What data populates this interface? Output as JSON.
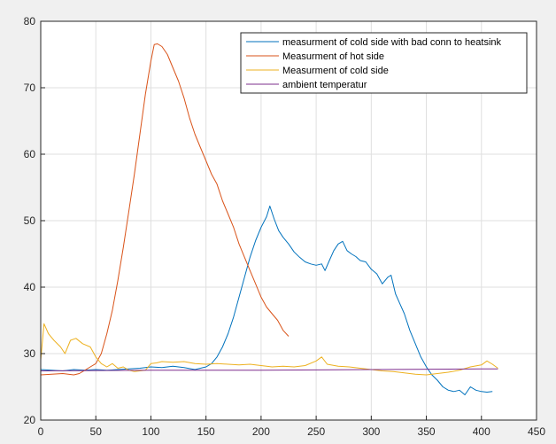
{
  "chart_data": {
    "type": "line",
    "title": "",
    "xlabel": "",
    "ylabel": "",
    "xlim": [
      0,
      450
    ],
    "ylim": [
      20,
      80
    ],
    "xticks": [
      0,
      50,
      100,
      150,
      200,
      250,
      300,
      350,
      400,
      450
    ],
    "yticks": [
      20,
      30,
      40,
      50,
      60,
      70,
      80
    ],
    "grid": true,
    "legend_position": "top-right",
    "series": [
      {
        "name": "measurment of cold side with bad conn to heatsink",
        "color": "#0072bd",
        "points": [
          [
            0,
            27.6
          ],
          [
            10,
            27.5
          ],
          [
            20,
            27.4
          ],
          [
            30,
            27.6
          ],
          [
            40,
            27.5
          ],
          [
            50,
            27.6
          ],
          [
            60,
            27.5
          ],
          [
            70,
            27.6
          ],
          [
            80,
            27.7
          ],
          [
            90,
            27.8
          ],
          [
            100,
            28.0
          ],
          [
            110,
            27.9
          ],
          [
            120,
            28.1
          ],
          [
            130,
            27.9
          ],
          [
            140,
            27.6
          ],
          [
            150,
            28.0
          ],
          [
            155,
            28.5
          ],
          [
            160,
            29.5
          ],
          [
            165,
            31.0
          ],
          [
            170,
            33.0
          ],
          [
            175,
            35.5
          ],
          [
            180,
            38.5
          ],
          [
            185,
            41.5
          ],
          [
            190,
            44.5
          ],
          [
            195,
            47.0
          ],
          [
            200,
            49.0
          ],
          [
            205,
            50.6
          ],
          [
            208,
            52.2
          ],
          [
            212,
            50.2
          ],
          [
            216,
            48.5
          ],
          [
            220,
            47.5
          ],
          [
            225,
            46.5
          ],
          [
            230,
            45.3
          ],
          [
            235,
            44.5
          ],
          [
            240,
            43.8
          ],
          [
            245,
            43.5
          ],
          [
            250,
            43.3
          ],
          [
            255,
            43.5
          ],
          [
            258,
            42.5
          ],
          [
            262,
            44.0
          ],
          [
            266,
            45.5
          ],
          [
            270,
            46.5
          ],
          [
            274,
            46.9
          ],
          [
            278,
            45.5
          ],
          [
            282,
            45.0
          ],
          [
            286,
            44.6
          ],
          [
            290,
            44.0
          ],
          [
            295,
            43.8
          ],
          [
            300,
            42.7
          ],
          [
            305,
            42.0
          ],
          [
            310,
            40.5
          ],
          [
            315,
            41.5
          ],
          [
            318,
            41.8
          ],
          [
            322,
            39.0
          ],
          [
            326,
            37.5
          ],
          [
            330,
            36.0
          ],
          [
            335,
            33.5
          ],
          [
            340,
            31.5
          ],
          [
            345,
            29.5
          ],
          [
            350,
            28.0
          ],
          [
            355,
            26.8
          ],
          [
            360,
            26.0
          ],
          [
            365,
            25.0
          ],
          [
            370,
            24.5
          ],
          [
            375,
            24.3
          ],
          [
            380,
            24.5
          ],
          [
            385,
            23.8
          ],
          [
            390,
            25.0
          ],
          [
            395,
            24.5
          ],
          [
            400,
            24.3
          ],
          [
            405,
            24.2
          ],
          [
            410,
            24.3
          ]
        ]
      },
      {
        "name": "Measurment of hot side",
        "color": "#d95319",
        "points": [
          [
            0,
            26.8
          ],
          [
            10,
            26.9
          ],
          [
            20,
            27.0
          ],
          [
            30,
            26.8
          ],
          [
            35,
            27.0
          ],
          [
            40,
            27.5
          ],
          [
            45,
            28.0
          ],
          [
            50,
            28.5
          ],
          [
            55,
            30.0
          ],
          [
            60,
            33.0
          ],
          [
            65,
            36.5
          ],
          [
            70,
            41.0
          ],
          [
            75,
            46.0
          ],
          [
            80,
            51.5
          ],
          [
            85,
            57.0
          ],
          [
            90,
            63.0
          ],
          [
            95,
            69.0
          ],
          [
            100,
            74.0
          ],
          [
            103,
            76.5
          ],
          [
            106,
            76.6
          ],
          [
            110,
            76.2
          ],
          [
            115,
            75.0
          ],
          [
            120,
            73.0
          ],
          [
            125,
            71.0
          ],
          [
            130,
            68.5
          ],
          [
            135,
            65.5
          ],
          [
            140,
            63.0
          ],
          [
            145,
            61.0
          ],
          [
            150,
            59.0
          ],
          [
            155,
            57.0
          ],
          [
            160,
            55.5
          ],
          [
            165,
            53.0
          ],
          [
            170,
            51.0
          ],
          [
            175,
            49.0
          ],
          [
            180,
            46.5
          ],
          [
            185,
            44.5
          ],
          [
            190,
            42.5
          ],
          [
            195,
            40.5
          ],
          [
            200,
            38.5
          ],
          [
            205,
            37.0
          ],
          [
            210,
            36.0
          ],
          [
            215,
            35.0
          ],
          [
            220,
            33.5
          ],
          [
            225,
            32.6
          ]
        ]
      },
      {
        "name": "Measurment of cold side",
        "color": "#edb120",
        "points": [
          [
            0,
            29.0
          ],
          [
            3,
            34.5
          ],
          [
            7,
            33.0
          ],
          [
            12,
            32.0
          ],
          [
            18,
            31.0
          ],
          [
            22,
            30.0
          ],
          [
            27,
            32.0
          ],
          [
            32,
            32.3
          ],
          [
            38,
            31.5
          ],
          [
            45,
            31.0
          ],
          [
            50,
            29.5
          ],
          [
            55,
            28.5
          ],
          [
            60,
            28.0
          ],
          [
            65,
            28.5
          ],
          [
            70,
            27.8
          ],
          [
            75,
            28.0
          ],
          [
            80,
            27.5
          ],
          [
            85,
            27.3
          ],
          [
            90,
            27.4
          ],
          [
            95,
            27.5
          ],
          [
            100,
            28.5
          ],
          [
            105,
            28.6
          ],
          [
            110,
            28.8
          ],
          [
            120,
            28.7
          ],
          [
            130,
            28.8
          ],
          [
            140,
            28.5
          ],
          [
            150,
            28.4
          ],
          [
            160,
            28.5
          ],
          [
            170,
            28.4
          ],
          [
            180,
            28.3
          ],
          [
            190,
            28.4
          ],
          [
            200,
            28.2
          ],
          [
            210,
            28.0
          ],
          [
            220,
            28.1
          ],
          [
            230,
            28.0
          ],
          [
            240,
            28.2
          ],
          [
            250,
            28.9
          ],
          [
            255,
            29.5
          ],
          [
            260,
            28.4
          ],
          [
            270,
            28.1
          ],
          [
            280,
            28.0
          ],
          [
            290,
            27.8
          ],
          [
            300,
            27.6
          ],
          [
            310,
            27.4
          ],
          [
            320,
            27.3
          ],
          [
            330,
            27.1
          ],
          [
            340,
            26.9
          ],
          [
            350,
            26.8
          ],
          [
            360,
            27.0
          ],
          [
            370,
            27.2
          ],
          [
            380,
            27.5
          ],
          [
            390,
            28.0
          ],
          [
            400,
            28.3
          ],
          [
            405,
            28.9
          ],
          [
            410,
            28.4
          ],
          [
            415,
            27.8
          ]
        ]
      },
      {
        "name": "ambient temperatur",
        "color": "#7e2f8e",
        "points": [
          [
            0,
            27.4
          ],
          [
            100,
            27.5
          ],
          [
            200,
            27.5
          ],
          [
            300,
            27.6
          ],
          [
            400,
            27.7
          ],
          [
            415,
            27.7
          ]
        ]
      }
    ]
  }
}
